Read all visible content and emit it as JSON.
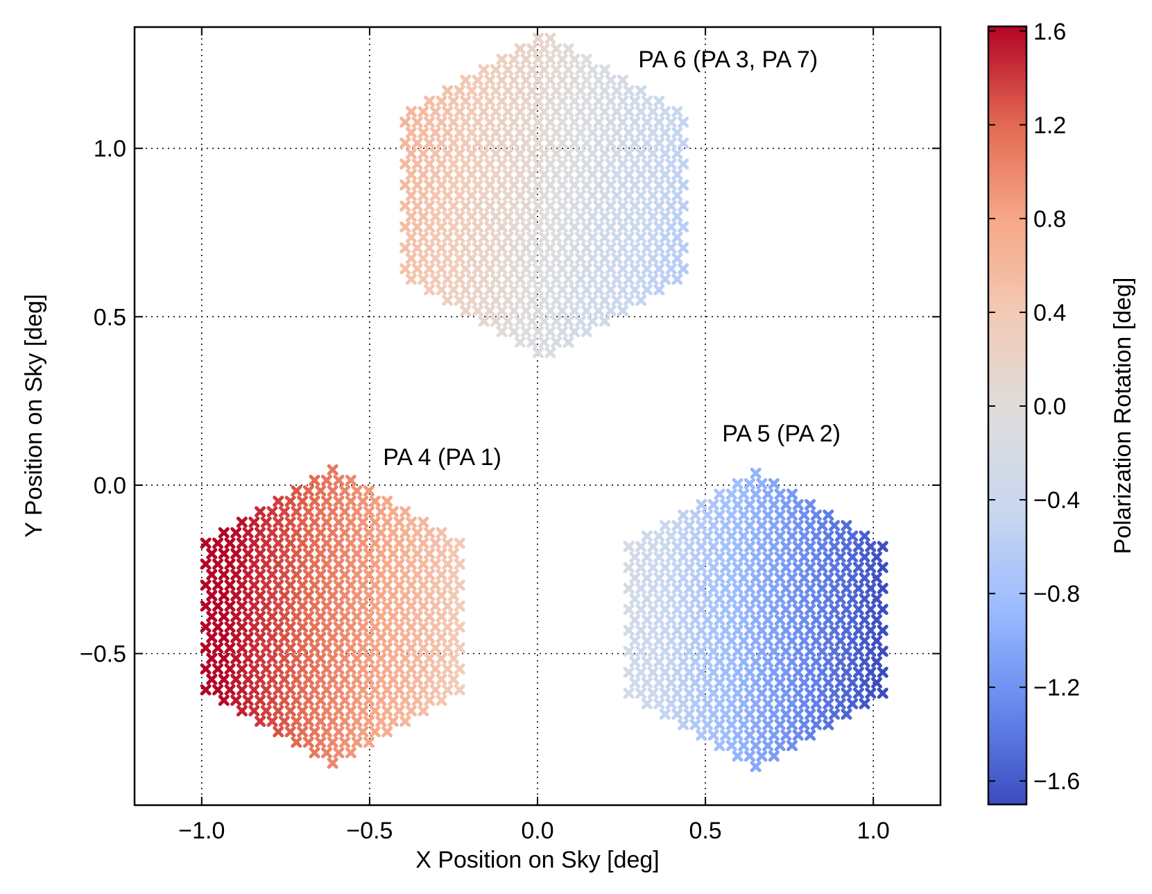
{
  "chart_data": {
    "type": "scatter",
    "xlabel": "X Position on Sky [deg]",
    "ylabel": "Y Position on Sky [deg]",
    "xlim": [
      -1.2,
      1.2
    ],
    "ylim": [
      -0.95,
      1.36
    ],
    "grid": true,
    "x_ticks": [
      -1.0,
      -0.5,
      0.0,
      0.5,
      1.0
    ],
    "x_tick_labels": [
      "−1.0",
      "−0.5",
      "0.0",
      "0.5",
      "1.0"
    ],
    "y_ticks": [
      -0.5,
      0.0,
      0.5,
      1.0
    ],
    "y_tick_labels": [
      "−0.5",
      "0.0",
      "0.5",
      "1.0"
    ],
    "colorbar": {
      "label": "Polarization Rotation [deg]",
      "range": [
        -1.7,
        1.62
      ],
      "ticks": [
        1.6,
        1.2,
        0.8,
        0.4,
        0.0,
        -0.4,
        -0.8,
        -1.2,
        -1.6
      ],
      "tick_labels": [
        "1.6",
        "1.2",
        "0.8",
        "0.4",
        "0.0",
        "−0.4",
        "−0.8",
        "−1.2",
        "−1.6"
      ],
      "colormap": [
        "#3b4cc0",
        "#6788ee",
        "#9abbff",
        "#c9d7f0",
        "#dddddd",
        "#f2cbb7",
        "#f7a889",
        "#e26952",
        "#b40426"
      ]
    },
    "arrays": [
      {
        "name": "PA 6 (PA 3, PA 7)",
        "center": [
          0.02,
          0.86
        ],
        "radius": 0.5,
        "hex_spacing": 0.036,
        "value_gradient": {
          "base": 0.0,
          "dx": -1.2,
          "dy": 0.3
        },
        "annotation_pos": [
          0.3,
          1.24
        ]
      },
      {
        "name": "PA 4 (PA 1)",
        "center": [
          -0.61,
          -0.39
        ],
        "radius": 0.45,
        "hex_spacing": 0.036,
        "value_gradient": {
          "base": 1.05,
          "dx": -1.4,
          "dy": 0.1
        },
        "annotation_pos": [
          -0.46,
          0.06
        ]
      },
      {
        "name": "PA 5 (PA 2)",
        "center": [
          0.65,
          -0.4
        ],
        "radius": 0.45,
        "hex_spacing": 0.036,
        "value_gradient": {
          "base": -0.98,
          "dx": -1.5,
          "dy": 0.1
        },
        "annotation_pos": [
          0.55,
          0.13
        ]
      }
    ]
  }
}
